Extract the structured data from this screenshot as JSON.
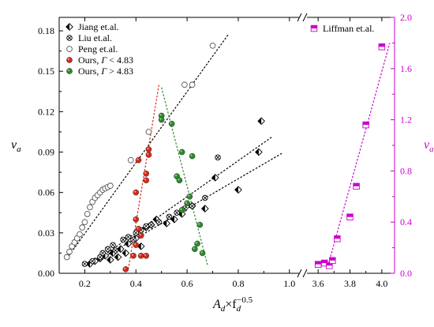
{
  "chart_data": {
    "type": "scatter",
    "title": "",
    "xlabel": "Ad×fd−0.5",
    "xlabel_main": "A",
    "xlabel_sub": "d",
    "xlabel_mid": "×f",
    "xlabel_sub2": "d",
    "xlabel_sup": "−0.5",
    "ylabel_left": "ν",
    "ylabel_left_sub": "a",
    "ylabel_right": "ν",
    "ylabel_right_sub": "a",
    "grid": false,
    "legend_placement": "top-left",
    "left_panel": {
      "xlim": [
        0.1,
        1.05
      ],
      "ylim": [
        0,
        0.19
      ],
      "xticks": [
        "0.2",
        "0.4",
        "0.6",
        "0.8",
        "1.0"
      ],
      "xtick_values": [
        0.2,
        0.4,
        0.6,
        0.8,
        1.0
      ],
      "yticks": [
        "0.00",
        "0.03",
        "0.06",
        "0.09",
        "0.12",
        "0.15",
        "0.18"
      ],
      "ytick_values": [
        0,
        0.03,
        0.06,
        0.09,
        0.12,
        0.15,
        0.18
      ],
      "series": [
        {
          "name": "Jiang et.al.",
          "marker": "half-diamond",
          "color": "#000000",
          "points": [
            [
              0.22,
              0.007
            ],
            [
              0.24,
              0.009
            ],
            [
              0.26,
              0.011
            ],
            [
              0.28,
              0.013
            ],
            [
              0.3,
              0.01
            ],
            [
              0.31,
              0.015
            ],
            [
              0.33,
              0.012
            ],
            [
              0.34,
              0.018
            ],
            [
              0.36,
              0.015
            ],
            [
              0.37,
              0.022
            ],
            [
              0.4,
              0.026
            ],
            [
              0.42,
              0.02
            ],
            [
              0.44,
              0.034
            ],
            [
              0.46,
              0.036
            ],
            [
              0.48,
              0.04
            ],
            [
              0.52,
              0.037
            ],
            [
              0.55,
              0.04
            ],
            [
              0.58,
              0.044
            ],
            [
              0.62,
              0.05
            ],
            [
              0.67,
              0.048
            ],
            [
              0.71,
              0.071
            ],
            [
              0.8,
              0.062
            ],
            [
              0.88,
              0.09
            ],
            [
              0.89,
              0.113
            ]
          ]
        },
        {
          "name": "Liu et.al.",
          "marker": "circle-x",
          "color": "#000000",
          "points": [
            [
              0.2,
              0.007
            ],
            [
              0.23,
              0.009
            ],
            [
              0.26,
              0.012
            ],
            [
              0.27,
              0.015
            ],
            [
              0.29,
              0.018
            ],
            [
              0.31,
              0.021
            ],
            [
              0.32,
              0.017
            ],
            [
              0.35,
              0.025
            ],
            [
              0.37,
              0.027
            ],
            [
              0.39,
              0.025
            ],
            [
              0.4,
              0.03
            ],
            [
              0.42,
              0.032
            ],
            [
              0.44,
              0.035
            ],
            [
              0.46,
              0.036
            ],
            [
              0.49,
              0.038
            ],
            [
              0.53,
              0.042
            ],
            [
              0.56,
              0.045
            ],
            [
              0.59,
              0.048
            ],
            [
              0.62,
              0.05
            ],
            [
              0.67,
              0.056
            ],
            [
              0.72,
              0.086
            ]
          ]
        },
        {
          "name": "Peng et.al.",
          "marker": "open-circle",
          "color": "#000000",
          "points": [
            [
              0.13,
              0.012
            ],
            [
              0.14,
              0.016
            ],
            [
              0.15,
              0.02
            ],
            [
              0.16,
              0.023
            ],
            [
              0.17,
              0.026
            ],
            [
              0.18,
              0.029
            ],
            [
              0.19,
              0.034
            ],
            [
              0.2,
              0.038
            ],
            [
              0.21,
              0.044
            ],
            [
              0.22,
              0.049
            ],
            [
              0.23,
              0.053
            ],
            [
              0.24,
              0.056
            ],
            [
              0.25,
              0.058
            ],
            [
              0.26,
              0.06
            ],
            [
              0.27,
              0.062
            ],
            [
              0.28,
              0.063
            ],
            [
              0.29,
              0.064
            ],
            [
              0.3,
              0.065
            ],
            [
              0.38,
              0.084
            ],
            [
              0.45,
              0.105
            ],
            [
              0.59,
              0.14
            ],
            [
              0.62,
              0.14
            ],
            [
              0.7,
              0.169
            ]
          ]
        },
        {
          "name": "Ours, Γ < 4.83",
          "marker": "filled-circle",
          "color": "#d42a1a",
          "points": [
            [
              0.36,
              0.003
            ],
            [
              0.39,
              0.013
            ],
            [
              0.4,
              0.021
            ],
            [
              0.4,
              0.04
            ],
            [
              0.4,
              0.06
            ],
            [
              0.41,
              0.084
            ],
            [
              0.41,
              0.033
            ],
            [
              0.42,
              0.028
            ],
            [
              0.42,
              0.013
            ],
            [
              0.44,
              0.013
            ],
            [
              0.44,
              0.074
            ],
            [
              0.44,
              0.069
            ],
            [
              0.45,
              0.088
            ],
            [
              0.45,
              0.092
            ]
          ]
        },
        {
          "name": "Ours, Γ > 4.83",
          "marker": "filled-circle",
          "color": "#2a8a2a",
          "points": [
            [
              0.5,
              0.117
            ],
            [
              0.5,
              0.114
            ],
            [
              0.54,
              0.111
            ],
            [
              0.56,
              0.072
            ],
            [
              0.57,
              0.069
            ],
            [
              0.58,
              0.09
            ],
            [
              0.58,
              0.047
            ],
            [
              0.6,
              0.052
            ],
            [
              0.61,
              0.057
            ],
            [
              0.62,
              0.087
            ],
            [
              0.63,
              0.018
            ],
            [
              0.64,
              0.022
            ],
            [
              0.65,
              0.036
            ],
            [
              0.66,
              0.015
            ]
          ]
        }
      ],
      "fit_lines": [
        {
          "for": "Jiang et.al.",
          "color": "#000000",
          "from": [
            0.22,
            0.006
          ],
          "to": [
            0.93,
            0.101
          ]
        },
        {
          "for": "Liu et.al.",
          "color": "#000000",
          "from": [
            0.22,
            0.006
          ],
          "to": [
            0.97,
            0.089
          ]
        },
        {
          "for": "Peng et.al.",
          "color": "#000000",
          "from": [
            0.13,
            0.011
          ],
          "to": [
            0.76,
            0.177
          ]
        },
        {
          "for": "Ours, Γ < 4.83",
          "color": "#d42a1a",
          "from": [
            0.37,
            0.003
          ],
          "to": [
            0.49,
            0.14
          ]
        },
        {
          "for": "Ours, Γ > 4.83",
          "color": "#2a8a2a",
          "from": [
            0.5,
            0.138
          ],
          "to": [
            0.68,
            0.006
          ]
        }
      ]
    },
    "right_panel": {
      "xlim": [
        3.5,
        4.08
      ],
      "ylim": [
        0,
        2.0
      ],
      "xticks": [
        "3.6",
        "3.8",
        "4.0"
      ],
      "xtick_values": [
        3.6,
        3.8,
        4.0
      ],
      "yticks": [
        "0.0",
        "0.4",
        "0.8",
        "1.2",
        "1.6",
        "2.0"
      ],
      "ytick_values": [
        0,
        0.4,
        0.8,
        1.2,
        1.6,
        2.0
      ],
      "axis_color": "#cc00cc",
      "series": [
        {
          "name": "Liffman et.al.",
          "marker": "half-square",
          "color": "#cc00cc",
          "points": [
            [
              3.6,
              0.07
            ],
            [
              3.64,
              0.08
            ],
            [
              3.67,
              0.06
            ],
            [
              3.69,
              0.1
            ],
            [
              3.72,
              0.27
            ],
            [
              3.8,
              0.44
            ],
            [
              3.84,
              0.68
            ],
            [
              3.9,
              1.16
            ],
            [
              4.0,
              1.77
            ]
          ]
        }
      ],
      "fit_lines": [
        {
          "for": "Liffman et.al.",
          "color": "#cc00cc",
          "from": [
            3.66,
            0.05
          ],
          "to": [
            4.05,
            1.8
          ]
        }
      ]
    }
  }
}
